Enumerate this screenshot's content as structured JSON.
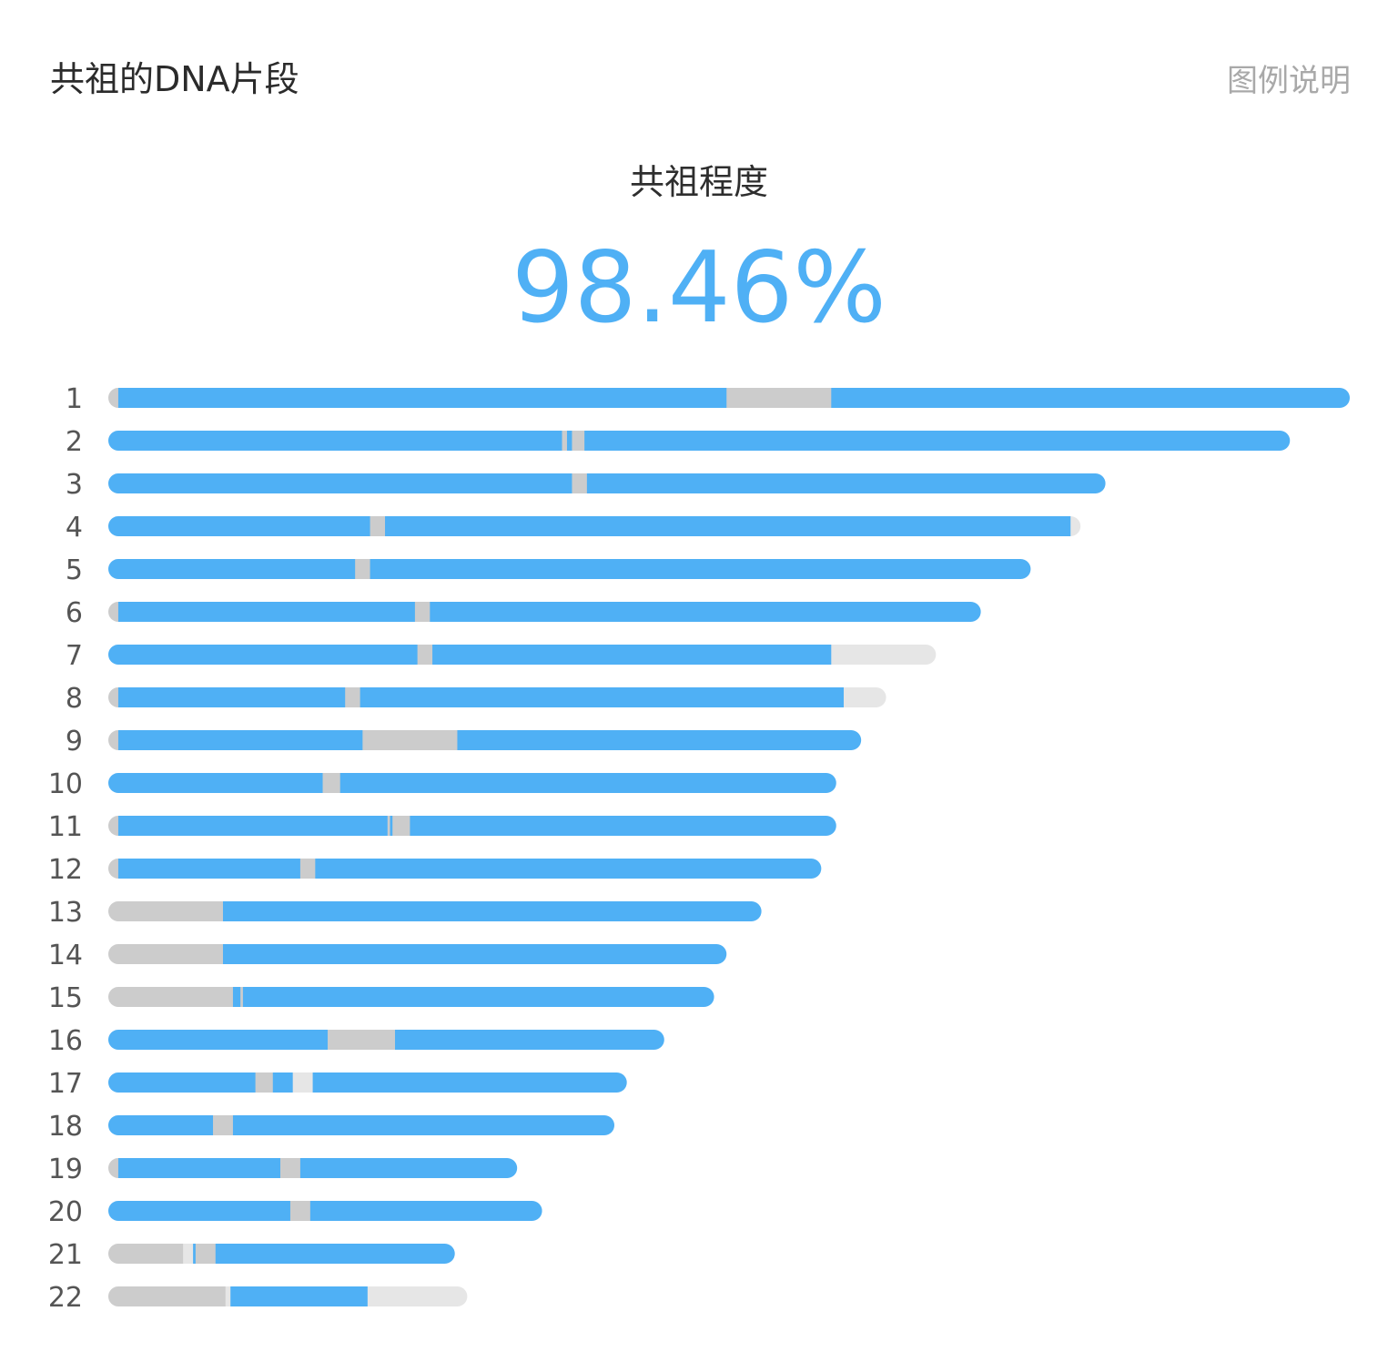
{
  "header": {
    "title": "共祖的DNA片段",
    "legend_link": "图例说明"
  },
  "summary": {
    "label": "共祖程度",
    "value": "98.46%"
  },
  "colors": {
    "shared": "#4fb0f5",
    "not_shared": "#cccccc",
    "no_data": "#e6e6e6"
  },
  "chart_data": {
    "type": "bar",
    "orientation": "horizontal",
    "title": "",
    "categories": [
      "1",
      "2",
      "3",
      "4",
      "5",
      "6",
      "7",
      "8",
      "9",
      "10",
      "11",
      "12",
      "13",
      "14",
      "15",
      "16",
      "17",
      "18",
      "19",
      "20",
      "21",
      "22"
    ],
    "x_max": 249,
    "chromosomes": [
      {
        "label": "1",
        "segments": [
          [
            0,
            2,
            "not_shared"
          ],
          [
            2,
            124,
            "shared"
          ],
          [
            124,
            145,
            "not_shared"
          ],
          [
            145,
            249,
            "shared"
          ]
        ]
      },
      {
        "label": "2",
        "segments": [
          [
            0,
            91,
            "shared"
          ],
          [
            91,
            92,
            "not_shared"
          ],
          [
            92,
            93,
            "shared"
          ],
          [
            93,
            95.5,
            "not_shared"
          ],
          [
            95.5,
            237,
            "shared"
          ]
        ]
      },
      {
        "label": "3",
        "segments": [
          [
            0,
            93,
            "shared"
          ],
          [
            93,
            96,
            "not_shared"
          ],
          [
            96,
            200,
            "shared"
          ]
        ]
      },
      {
        "label": "4",
        "segments": [
          [
            0,
            52.5,
            "shared"
          ],
          [
            52.5,
            55.5,
            "not_shared"
          ],
          [
            55.5,
            193,
            "shared"
          ],
          [
            193,
            195,
            "no_data"
          ]
        ]
      },
      {
        "label": "5",
        "segments": [
          [
            0,
            49.5,
            "shared"
          ],
          [
            49.5,
            52.5,
            "not_shared"
          ],
          [
            52.5,
            185,
            "shared"
          ]
        ]
      },
      {
        "label": "6",
        "segments": [
          [
            0,
            2,
            "not_shared"
          ],
          [
            2,
            61.5,
            "shared"
          ],
          [
            61.5,
            64.5,
            "not_shared"
          ],
          [
            64.5,
            175,
            "shared"
          ]
        ]
      },
      {
        "label": "7",
        "segments": [
          [
            0,
            62,
            "shared"
          ],
          [
            62,
            65,
            "not_shared"
          ],
          [
            65,
            145,
            "shared"
          ],
          [
            145,
            166,
            "no_data"
          ]
        ]
      },
      {
        "label": "8",
        "segments": [
          [
            0,
            2,
            "not_shared"
          ],
          [
            2,
            47.5,
            "shared"
          ],
          [
            47.5,
            50.5,
            "not_shared"
          ],
          [
            50.5,
            147.5,
            "shared"
          ],
          [
            147.5,
            156,
            "no_data"
          ]
        ]
      },
      {
        "label": "9",
        "segments": [
          [
            0,
            2,
            "not_shared"
          ],
          [
            2,
            51,
            "shared"
          ],
          [
            51,
            70,
            "not_shared"
          ],
          [
            70,
            151,
            "shared"
          ]
        ]
      },
      {
        "label": "10",
        "segments": [
          [
            0,
            43,
            "shared"
          ],
          [
            43,
            46.5,
            "not_shared"
          ],
          [
            46.5,
            146,
            "shared"
          ]
        ]
      },
      {
        "label": "11",
        "segments": [
          [
            0,
            2,
            "not_shared"
          ],
          [
            2,
            56,
            "shared"
          ],
          [
            56,
            56.5,
            "not_shared"
          ],
          [
            56.5,
            57,
            "shared"
          ],
          [
            57,
            60.5,
            "not_shared"
          ],
          [
            60.5,
            146,
            "shared"
          ]
        ]
      },
      {
        "label": "12",
        "segments": [
          [
            0,
            2,
            "not_shared"
          ],
          [
            2,
            38.5,
            "shared"
          ],
          [
            38.5,
            41.5,
            "not_shared"
          ],
          [
            41.5,
            143,
            "shared"
          ]
        ]
      },
      {
        "label": "13",
        "segments": [
          [
            0,
            23,
            "not_shared"
          ],
          [
            23,
            131,
            "shared"
          ]
        ]
      },
      {
        "label": "14",
        "segments": [
          [
            0,
            23,
            "not_shared"
          ],
          [
            23,
            124,
            "shared"
          ]
        ]
      },
      {
        "label": "15",
        "segments": [
          [
            0,
            25,
            "not_shared"
          ],
          [
            25,
            26.5,
            "shared"
          ],
          [
            26.5,
            27,
            "not_shared"
          ],
          [
            27,
            121.5,
            "shared"
          ]
        ]
      },
      {
        "label": "16",
        "segments": [
          [
            0,
            44,
            "shared"
          ],
          [
            44,
            57.5,
            "not_shared"
          ],
          [
            57.5,
            111.5,
            "shared"
          ]
        ]
      },
      {
        "label": "17",
        "segments": [
          [
            0,
            29.5,
            "shared"
          ],
          [
            29.5,
            33,
            "not_shared"
          ],
          [
            33,
            37,
            "shared"
          ],
          [
            37,
            41,
            "no_data"
          ],
          [
            41,
            104,
            "shared"
          ]
        ]
      },
      {
        "label": "18",
        "segments": [
          [
            0,
            21,
            "shared"
          ],
          [
            21,
            25,
            "not_shared"
          ],
          [
            25,
            101.5,
            "shared"
          ]
        ]
      },
      {
        "label": "19",
        "segments": [
          [
            0,
            2,
            "not_shared"
          ],
          [
            2,
            34.5,
            "shared"
          ],
          [
            34.5,
            38.5,
            "not_shared"
          ],
          [
            38.5,
            82,
            "shared"
          ]
        ]
      },
      {
        "label": "20",
        "segments": [
          [
            0,
            36.5,
            "shared"
          ],
          [
            36.5,
            40.5,
            "not_shared"
          ],
          [
            40.5,
            87,
            "shared"
          ]
        ]
      },
      {
        "label": "21",
        "segments": [
          [
            0,
            15,
            "not_shared"
          ],
          [
            15,
            17,
            "no_data"
          ],
          [
            17,
            17.5,
            "shared"
          ],
          [
            17.5,
            21.5,
            "not_shared"
          ],
          [
            21.5,
            69.5,
            "shared"
          ]
        ]
      },
      {
        "label": "22",
        "segments": [
          [
            0,
            23.5,
            "not_shared"
          ],
          [
            23.5,
            24.5,
            "no_data"
          ],
          [
            24.5,
            52,
            "shared"
          ],
          [
            52,
            72,
            "no_data"
          ]
        ]
      }
    ],
    "grid": false,
    "legend": "none"
  }
}
